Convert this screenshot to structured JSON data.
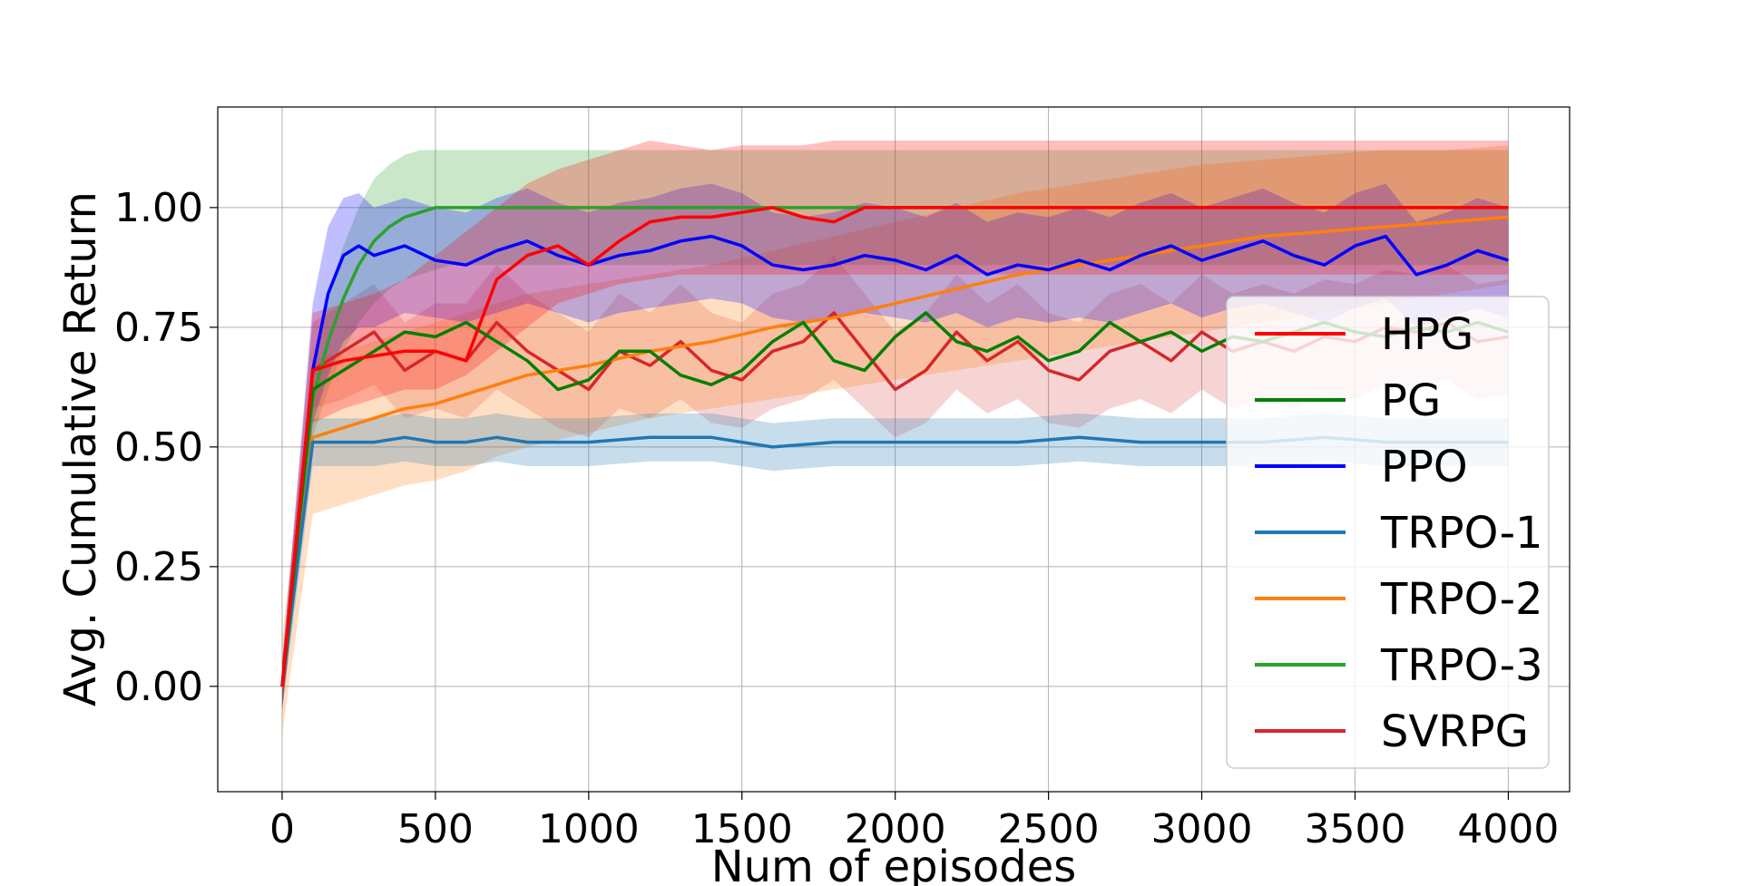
{
  "chart_data": {
    "type": "line",
    "title": "",
    "xlabel": "Num of episodes",
    "ylabel": "Avg. Cumulative Return",
    "xlim": [
      -210,
      4200
    ],
    "ylim": [
      -0.22,
      1.21
    ],
    "xticks": [
      0,
      500,
      1000,
      1500,
      2000,
      2500,
      3000,
      3500,
      4000
    ],
    "xtick_labels": [
      "0",
      "500",
      "1000",
      "1500",
      "2000",
      "2500",
      "3000",
      "3500",
      "4000"
    ],
    "yticks": [
      0.0,
      0.25,
      0.5,
      0.75,
      1.0
    ],
    "ytick_labels": [
      "0.00",
      "0.25",
      "0.50",
      "0.75",
      "1.00"
    ],
    "grid": true,
    "legend_position": "lower-right",
    "series": [
      {
        "name": "HPG",
        "color": "#ff0000",
        "band_color": "#ff0000",
        "band_opacity": 0.25,
        "x": [
          0,
          100,
          200,
          300,
          400,
          500,
          600,
          700,
          800,
          900,
          1000,
          1100,
          1200,
          1300,
          1400,
          1500,
          1600,
          1700,
          1800,
          1900,
          2000,
          2500,
          3000,
          3500,
          4000
        ],
        "y": [
          0.0,
          0.66,
          0.68,
          0.69,
          0.7,
          0.7,
          0.68,
          0.85,
          0.9,
          0.92,
          0.88,
          0.93,
          0.97,
          0.98,
          0.98,
          0.99,
          1.0,
          0.98,
          0.97,
          1.0,
          1.0,
          1.0,
          1.0,
          1.0,
          1.0
        ],
        "lower": [
          -0.05,
          0.55,
          0.58,
          0.6,
          0.62,
          0.62,
          0.65,
          0.7,
          0.75,
          0.8,
          0.82,
          0.84,
          0.85,
          0.86,
          0.86,
          0.86,
          0.86,
          0.86,
          0.86,
          0.86,
          0.86,
          0.86,
          0.86,
          0.86,
          0.86
        ],
        "upper": [
          0.05,
          0.78,
          0.8,
          0.82,
          0.85,
          0.9,
          0.95,
          1.0,
          1.05,
          1.08,
          1.1,
          1.12,
          1.14,
          1.13,
          1.12,
          1.13,
          1.13,
          1.13,
          1.14,
          1.14,
          1.14,
          1.14,
          1.14,
          1.14,
          1.14
        ]
      },
      {
        "name": "PG",
        "color": "#008000",
        "band_color": "#008000",
        "band_opacity": 0.0,
        "x": [
          0,
          100,
          200,
          300,
          400,
          500,
          600,
          700,
          800,
          900,
          1000,
          1100,
          1200,
          1300,
          1400,
          1500,
          1600,
          1700,
          1800,
          1900,
          2000,
          2100,
          2200,
          2300,
          2400,
          2500,
          2600,
          2700,
          2800,
          2900,
          3000,
          3100,
          3200,
          3300,
          3400,
          3500,
          3600,
          3700,
          3800,
          3900,
          4000
        ],
        "y": [
          0.0,
          0.62,
          0.66,
          0.7,
          0.74,
          0.73,
          0.76,
          0.72,
          0.68,
          0.62,
          0.64,
          0.7,
          0.7,
          0.65,
          0.63,
          0.66,
          0.72,
          0.76,
          0.68,
          0.66,
          0.73,
          0.78,
          0.72,
          0.7,
          0.73,
          0.68,
          0.7,
          0.76,
          0.72,
          0.74,
          0.7,
          0.73,
          0.72,
          0.74,
          0.76,
          0.74,
          0.73,
          0.75,
          0.74,
          0.76,
          0.74
        ],
        "lower": [],
        "upper": []
      },
      {
        "name": "PPO",
        "color": "#0000ff",
        "band_color": "#0000ff",
        "band_opacity": 0.25,
        "x": [
          0,
          100,
          150,
          200,
          250,
          300,
          400,
          500,
          600,
          700,
          800,
          900,
          1000,
          1100,
          1200,
          1300,
          1400,
          1500,
          1600,
          1700,
          1800,
          1900,
          2000,
          2100,
          2200,
          2300,
          2400,
          2500,
          2600,
          2700,
          2800,
          2900,
          3000,
          3100,
          3200,
          3300,
          3400,
          3500,
          3600,
          3700,
          3800,
          3900,
          4000
        ],
        "y": [
          0.0,
          0.66,
          0.82,
          0.9,
          0.92,
          0.9,
          0.92,
          0.89,
          0.88,
          0.91,
          0.93,
          0.9,
          0.88,
          0.9,
          0.91,
          0.93,
          0.94,
          0.92,
          0.88,
          0.87,
          0.88,
          0.9,
          0.89,
          0.87,
          0.9,
          0.86,
          0.88,
          0.87,
          0.89,
          0.87,
          0.9,
          0.92,
          0.89,
          0.91,
          0.93,
          0.9,
          0.88,
          0.92,
          0.94,
          0.86,
          0.88,
          0.91,
          0.89
        ],
        "lower": [
          -0.05,
          0.55,
          0.65,
          0.72,
          0.75,
          0.75,
          0.78,
          0.77,
          0.76,
          0.78,
          0.8,
          0.78,
          0.76,
          0.78,
          0.79,
          0.8,
          0.81,
          0.8,
          0.77,
          0.76,
          0.77,
          0.78,
          0.77,
          0.76,
          0.78,
          0.75,
          0.77,
          0.76,
          0.77,
          0.76,
          0.78,
          0.8,
          0.77,
          0.79,
          0.8,
          0.78,
          0.76,
          0.79,
          0.81,
          0.75,
          0.77,
          0.79,
          0.77
        ],
        "upper": [
          0.05,
          0.8,
          0.96,
          1.02,
          1.03,
          1.0,
          1.02,
          1.0,
          0.99,
          1.02,
          1.04,
          1.01,
          0.99,
          1.01,
          1.02,
          1.04,
          1.05,
          1.03,
          0.99,
          0.98,
          0.99,
          1.01,
          1.0,
          0.98,
          1.01,
          0.97,
          0.99,
          0.98,
          1.0,
          0.98,
          1.01,
          1.03,
          1.0,
          1.02,
          1.04,
          1.01,
          0.99,
          1.03,
          1.05,
          0.97,
          0.99,
          1.02,
          1.0
        ]
      },
      {
        "name": "TRPO-1",
        "color": "#1f77b4",
        "band_color": "#1f77b4",
        "band_opacity": 0.25,
        "x": [
          0,
          100,
          200,
          300,
          400,
          500,
          600,
          700,
          800,
          900,
          1000,
          1200,
          1400,
          1500,
          1600,
          1800,
          2000,
          2200,
          2400,
          2600,
          2800,
          3000,
          3200,
          3400,
          3600,
          3800,
          4000
        ],
        "y": [
          0.0,
          0.51,
          0.51,
          0.51,
          0.52,
          0.51,
          0.51,
          0.52,
          0.51,
          0.51,
          0.51,
          0.52,
          0.52,
          0.51,
          0.5,
          0.51,
          0.51,
          0.51,
          0.51,
          0.52,
          0.51,
          0.51,
          0.51,
          0.52,
          0.51,
          0.51,
          0.51
        ],
        "lower": [
          -0.05,
          0.46,
          0.46,
          0.46,
          0.47,
          0.46,
          0.46,
          0.47,
          0.46,
          0.46,
          0.46,
          0.47,
          0.47,
          0.46,
          0.45,
          0.46,
          0.46,
          0.46,
          0.46,
          0.47,
          0.46,
          0.46,
          0.46,
          0.47,
          0.46,
          0.46,
          0.46
        ],
        "upper": [
          0.05,
          0.56,
          0.56,
          0.56,
          0.57,
          0.56,
          0.56,
          0.57,
          0.56,
          0.56,
          0.56,
          0.57,
          0.57,
          0.56,
          0.55,
          0.56,
          0.56,
          0.56,
          0.56,
          0.57,
          0.56,
          0.56,
          0.56,
          0.57,
          0.56,
          0.56,
          0.56
        ]
      },
      {
        "name": "TRPO-2",
        "color": "#ff7f0e",
        "band_color": "#ff7f0e",
        "band_opacity": 0.25,
        "x": [
          0,
          100,
          200,
          300,
          400,
          500,
          600,
          700,
          800,
          1000,
          1200,
          1400,
          1600,
          1800,
          2000,
          2200,
          2400,
          2600,
          2800,
          3000,
          3200,
          3400,
          3600,
          3800,
          4000
        ],
        "y": [
          0.0,
          0.52,
          0.54,
          0.56,
          0.58,
          0.59,
          0.61,
          0.63,
          0.65,
          0.67,
          0.7,
          0.72,
          0.75,
          0.77,
          0.8,
          0.83,
          0.86,
          0.88,
          0.9,
          0.92,
          0.94,
          0.95,
          0.96,
          0.97,
          0.98
        ],
        "lower": [
          -0.1,
          0.36,
          0.38,
          0.4,
          0.42,
          0.43,
          0.45,
          0.48,
          0.5,
          0.53,
          0.56,
          0.58,
          0.6,
          0.62,
          0.64,
          0.66,
          0.68,
          0.7,
          0.72,
          0.74,
          0.76,
          0.78,
          0.8,
          0.82,
          0.84
        ],
        "upper": [
          0.1,
          0.68,
          0.7,
          0.72,
          0.74,
          0.76,
          0.78,
          0.8,
          0.82,
          0.84,
          0.86,
          0.88,
          0.91,
          0.94,
          0.97,
          1.0,
          1.03,
          1.05,
          1.07,
          1.09,
          1.1,
          1.11,
          1.12,
          1.12,
          1.13
        ]
      },
      {
        "name": "TRPO-3",
        "color": "#2ca02c",
        "band_color": "#2ca02c",
        "band_opacity": 0.25,
        "x": [
          0,
          100,
          150,
          200,
          250,
          300,
          350,
          400,
          450,
          500,
          550,
          600,
          700,
          800,
          1000,
          1500,
          2000,
          2500,
          3000,
          3500,
          4000
        ],
        "y": [
          0.0,
          0.6,
          0.72,
          0.81,
          0.88,
          0.93,
          0.96,
          0.98,
          0.99,
          1.0,
          1.0,
          1.0,
          1.0,
          1.0,
          1.0,
          1.0,
          1.0,
          1.0,
          1.0,
          1.0,
          1.0
        ],
        "lower": [
          -0.05,
          0.52,
          0.62,
          0.7,
          0.76,
          0.8,
          0.83,
          0.85,
          0.86,
          0.87,
          0.88,
          0.88,
          0.88,
          0.88,
          0.88,
          0.88,
          0.88,
          0.88,
          0.88,
          0.88,
          0.88
        ],
        "upper": [
          0.05,
          0.68,
          0.82,
          0.92,
          1.0,
          1.06,
          1.09,
          1.11,
          1.12,
          1.12,
          1.12,
          1.12,
          1.12,
          1.12,
          1.12,
          1.12,
          1.12,
          1.12,
          1.12,
          1.12,
          1.12
        ]
      },
      {
        "name": "SVRPG",
        "color": "#d62728",
        "band_color": "#d62728",
        "band_opacity": 0.2,
        "x": [
          0,
          100,
          200,
          300,
          400,
          500,
          600,
          700,
          800,
          900,
          1000,
          1100,
          1200,
          1300,
          1400,
          1500,
          1600,
          1700,
          1800,
          1900,
          2000,
          2100,
          2200,
          2300,
          2400,
          2500,
          2600,
          2700,
          2800,
          2900,
          3000,
          3100,
          3200,
          3300,
          3400,
          3500,
          3600,
          3700,
          3800,
          3900,
          4000
        ],
        "y": [
          0.0,
          0.66,
          0.7,
          0.74,
          0.66,
          0.7,
          0.68,
          0.76,
          0.7,
          0.66,
          0.62,
          0.7,
          0.67,
          0.72,
          0.66,
          0.64,
          0.7,
          0.72,
          0.78,
          0.7,
          0.62,
          0.66,
          0.74,
          0.68,
          0.72,
          0.66,
          0.64,
          0.7,
          0.72,
          0.68,
          0.74,
          0.7,
          0.72,
          0.7,
          0.73,
          0.72,
          0.75,
          0.74,
          0.76,
          0.72,
          0.73
        ],
        "lower": [
          -0.05,
          0.58,
          0.6,
          0.63,
          0.56,
          0.58,
          0.56,
          0.62,
          0.58,
          0.54,
          0.52,
          0.58,
          0.56,
          0.6,
          0.55,
          0.54,
          0.58,
          0.6,
          0.64,
          0.58,
          0.52,
          0.55,
          0.62,
          0.57,
          0.6,
          0.55,
          0.54,
          0.58,
          0.6,
          0.57,
          0.62,
          0.58,
          0.6,
          0.58,
          0.61,
          0.6,
          0.63,
          0.62,
          0.64,
          0.6,
          0.61
        ],
        "upper": [
          0.05,
          0.76,
          0.8,
          0.84,
          0.76,
          0.8,
          0.8,
          0.88,
          0.82,
          0.78,
          0.74,
          0.82,
          0.78,
          0.84,
          0.78,
          0.76,
          0.82,
          0.84,
          0.9,
          0.82,
          0.74,
          0.78,
          0.86,
          0.8,
          0.84,
          0.78,
          0.76,
          0.82,
          0.84,
          0.8,
          0.86,
          0.82,
          0.84,
          0.82,
          0.85,
          0.84,
          0.87,
          0.86,
          0.88,
          0.84,
          0.85
        ]
      }
    ]
  }
}
